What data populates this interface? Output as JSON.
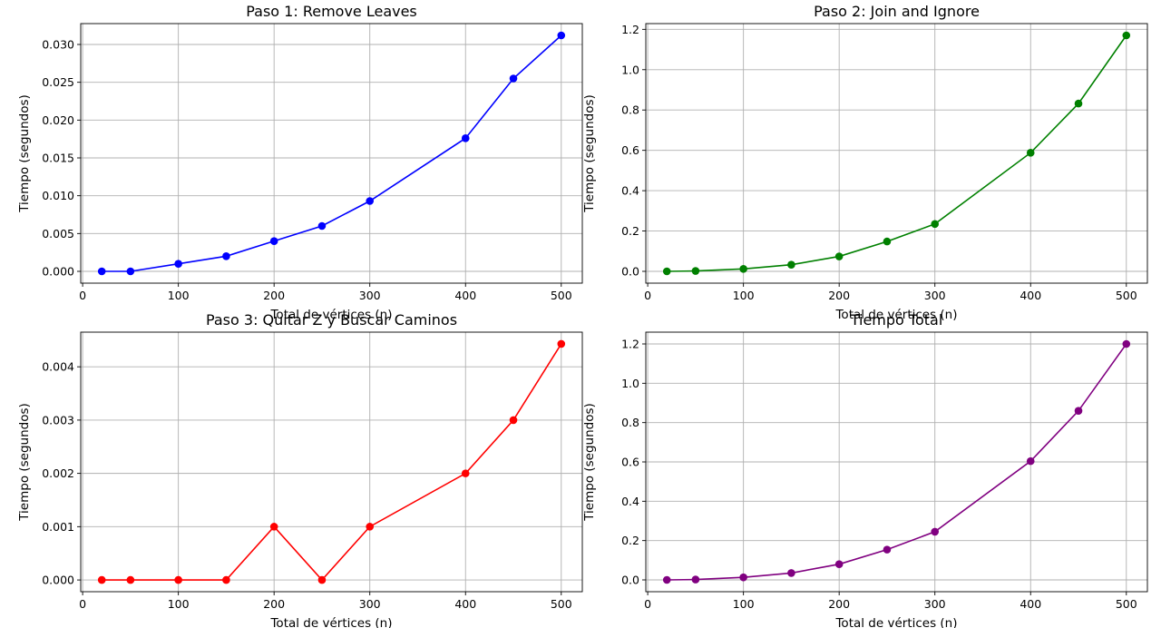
{
  "chart_data": [
    {
      "type": "line",
      "title": "Paso 1: Remove Leaves",
      "xlabel": "Total de vértices (n)",
      "ylabel": "Tiempo (segundos)",
      "color": "#0000ff",
      "grid": true,
      "x": [
        20,
        50,
        100,
        150,
        200,
        250,
        300,
        400,
        450,
        500
      ],
      "y": [
        0.0,
        0.0,
        0.001,
        0.002,
        0.004,
        0.006,
        0.0093,
        0.0176,
        0.0255,
        0.0312
      ],
      "xlim": [
        -2,
        522
      ],
      "ylim": [
        -0.00156,
        0.03276
      ],
      "xticks": [
        0,
        100,
        200,
        300,
        400,
        500
      ],
      "xtick_labels": [
        "0",
        "100",
        "200",
        "300",
        "400",
        "500"
      ],
      "yticks": [
        0,
        0.005,
        0.01,
        0.015,
        0.02,
        0.025,
        0.03
      ],
      "ytick_labels": [
        "0.000",
        "0.005",
        "0.010",
        "0.015",
        "0.020",
        "0.025",
        "0.030"
      ]
    },
    {
      "type": "line",
      "title": "Paso 2: Join and Ignore",
      "xlabel": "Total de vértices (n)",
      "ylabel": "Tiempo (segundos)",
      "color": "#008000",
      "grid": true,
      "x": [
        20,
        50,
        100,
        150,
        200,
        250,
        300,
        400,
        450,
        500
      ],
      "y": [
        0.0,
        0.002,
        0.012,
        0.033,
        0.074,
        0.148,
        0.235,
        0.588,
        0.832,
        1.17
      ],
      "xlim": [
        -2,
        522
      ],
      "ylim": [
        -0.0585,
        1.2285
      ],
      "xticks": [
        0,
        100,
        200,
        300,
        400,
        500
      ],
      "xtick_labels": [
        "0",
        "100",
        "200",
        "300",
        "400",
        "500"
      ],
      "yticks": [
        0,
        0.2,
        0.4,
        0.6,
        0.8,
        1.0,
        1.2
      ],
      "ytick_labels": [
        "0.0",
        "0.2",
        "0.4",
        "0.6",
        "0.8",
        "1.0",
        "1.2"
      ]
    },
    {
      "type": "line",
      "title": "Paso 3: Quitar Z y Buscar Caminos",
      "xlabel": "Total de vértices (n)",
      "ylabel": "Tiempo (segundos)",
      "color": "#ff0000",
      "grid": true,
      "x": [
        20,
        50,
        100,
        150,
        200,
        250,
        300,
        400,
        450,
        500
      ],
      "y": [
        0.0,
        0.0,
        0.0,
        0.0,
        0.001,
        0.0,
        0.001,
        0.002,
        0.003,
        0.00443
      ],
      "xlim": [
        -2,
        522
      ],
      "ylim": [
        -0.00022,
        0.00465
      ],
      "xticks": [
        0,
        100,
        200,
        300,
        400,
        500
      ],
      "xtick_labels": [
        "0",
        "100",
        "200",
        "300",
        "400",
        "500"
      ],
      "yticks": [
        0,
        0.001,
        0.002,
        0.003,
        0.004
      ],
      "ytick_labels": [
        "0.000",
        "0.001",
        "0.002",
        "0.003",
        "0.004"
      ]
    },
    {
      "type": "line",
      "title": "Tiempo Total",
      "xlabel": "Total de vértices (n)",
      "ylabel": "Tiempo (segundos)",
      "color": "#800080",
      "grid": true,
      "x": [
        20,
        50,
        100,
        150,
        200,
        250,
        300,
        400,
        450,
        500
      ],
      "y": [
        0.0,
        0.002,
        0.013,
        0.035,
        0.08,
        0.154,
        0.245,
        0.604,
        0.86,
        1.2
      ],
      "xlim": [
        -2,
        522
      ],
      "ylim": [
        -0.06,
        1.26
      ],
      "xticks": [
        0,
        100,
        200,
        300,
        400,
        500
      ],
      "xtick_labels": [
        "0",
        "100",
        "200",
        "300",
        "400",
        "500"
      ],
      "yticks": [
        0,
        0.2,
        0.4,
        0.6,
        0.8,
        1.0,
        1.2
      ],
      "ytick_labels": [
        "0.0",
        "0.2",
        "0.4",
        "0.6",
        "0.8",
        "1.0",
        "1.2"
      ]
    }
  ]
}
